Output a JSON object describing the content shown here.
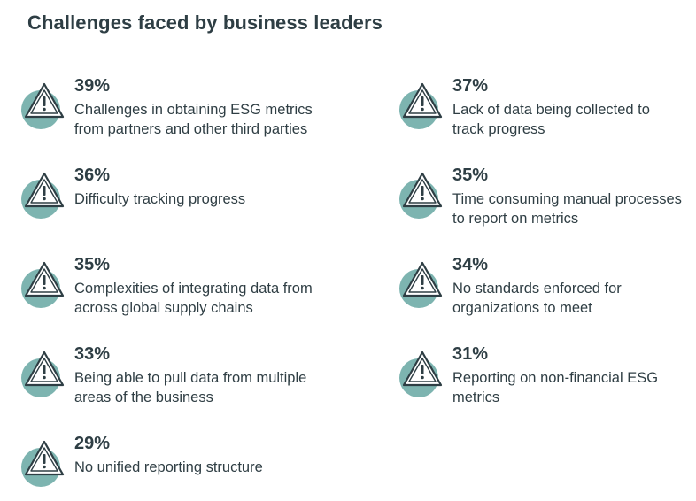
{
  "title": "Challenges faced by business leaders",
  "colors": {
    "icon_circle": "#7db4b0",
    "text": "#2e3e44"
  },
  "items": [
    {
      "percent": "39%",
      "text": "Challenges in obtaining ESG metrics from partners and other third parties",
      "icon": "warning-icon"
    },
    {
      "percent": "37%",
      "text": "Lack of data being collected to track progress",
      "icon": "warning-icon"
    },
    {
      "percent": "36%",
      "text": "Difficulty tracking progress",
      "icon": "warning-icon"
    },
    {
      "percent": "35%",
      "text": "Time consuming manual processes to report on metrics",
      "icon": "warning-icon"
    },
    {
      "percent": "35%",
      "text": "Complexities of integrating data from across global supply chains",
      "icon": "warning-icon"
    },
    {
      "percent": "34%",
      "text": "No standards enforced for organizations to meet",
      "icon": "warning-icon"
    },
    {
      "percent": "33%",
      "text": "Being able to pull data from multiple areas of the business",
      "icon": "warning-icon"
    },
    {
      "percent": "31%",
      "text": "Reporting on non-financial ESG metrics",
      "icon": "warning-icon"
    },
    {
      "percent": "29%",
      "text": "No unified reporting structure",
      "icon": "warning-icon"
    }
  ]
}
